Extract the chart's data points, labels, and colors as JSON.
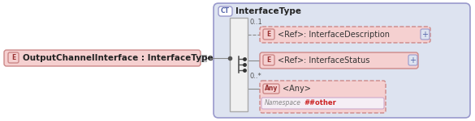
{
  "bg_color": "#ffffff",
  "panel_bg": "#dde3f0",
  "panel_border": "#9999cc",
  "box_fill_pink": "#f5d0d0",
  "box_border_pink": "#cc8888",
  "dashed_border": "#cc8888",
  "any_fill": "#f5d0d0",
  "any_border": "#cc8888",
  "namespace_fill": "#f5eef5",
  "namespace_border": "#ccaacc",
  "ct_fill": "#ffffff",
  "ct_border": "#9999cc",
  "seq_fill": "#e8e8e8",
  "seq_border": "#aaaaaa",
  "plus_fill": "#dde3f0",
  "plus_border": "#9999cc",
  "line_color": "#888888",
  "connector_color": "#aaaaaa",
  "main_label": "OutputChannelInterface : InterfaceType",
  "ct_label": "InterfaceType",
  "ct_badge": "CT",
  "e_badge": "E",
  "any_badge": "Any",
  "row1_ref": "<Ref>",
  "row1_sublabel": ": InterfaceDescription",
  "row1_mult": "0..1",
  "row2_ref": "<Ref>",
  "row2_sublabel": ": InterfaceStatus",
  "row3_any": "<Any>",
  "row3_mult": "0..*",
  "namespace_label": "Namespace",
  "namespace_value": "##other",
  "font_main": 7.5,
  "font_label": 7.0,
  "font_small": 6.0,
  "font_badge": 5.5,
  "font_ns": 5.5,
  "font_ns_val": 6.0
}
